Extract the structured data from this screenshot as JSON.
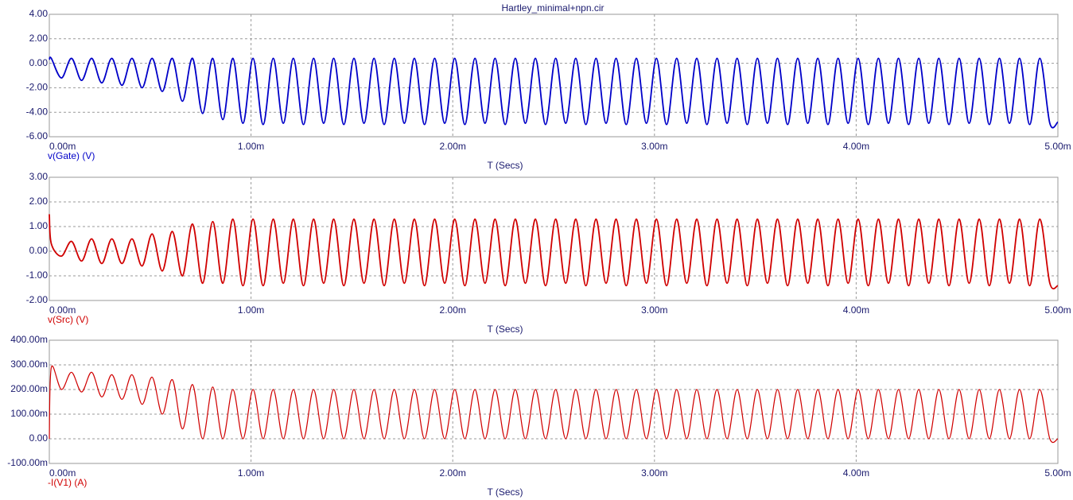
{
  "chart_data": [
    {
      "type": "line",
      "title": "Hartley_minimal+npn.cir",
      "xlabel": "T (Secs)",
      "xlim": [
        0,
        0.005
      ],
      "ylim": [
        -6,
        4
      ],
      "grid": true,
      "xticks": [
        {
          "value": 0,
          "label": "0.00m"
        },
        {
          "value": 0.001,
          "label": "1.00m"
        },
        {
          "value": 0.002,
          "label": "2.00m"
        },
        {
          "value": 0.003,
          "label": "3.00m"
        },
        {
          "value": 0.004,
          "label": "4.00m"
        },
        {
          "value": 0.005,
          "label": "5.00m"
        }
      ],
      "yticks": [
        {
          "value": 4,
          "label": "4.00"
        },
        {
          "value": 2,
          "label": "2.00"
        },
        {
          "value": 0,
          "label": "0.00"
        },
        {
          "value": -2,
          "label": "-2.00"
        },
        {
          "value": -4,
          "label": "-4.00"
        },
        {
          "value": -6,
          "label": "-6.00"
        }
      ],
      "x": [
        0,
        1e-05,
        6e-05,
        0.00011,
        0.00016,
        0.00021,
        0.00026,
        0.00031,
        0.00036,
        0.00041,
        0.00046,
        0.00051,
        0.00056,
        0.00061,
        0.00066,
        0.00071,
        0.00076,
        0.00081,
        0.00086,
        0.00091,
        0.00096,
        0.00101,
        0.00106,
        0.00111,
        0.00116,
        0.00121,
        0.00126,
        0.00131,
        0.00136,
        0.00141,
        0.00146,
        0.00151,
        0.00156,
        0.00161,
        0.00166,
        0.00171,
        0.00176,
        0.00181,
        0.00186,
        0.00191,
        0.00196,
        0.00201,
        0.00206,
        0.00211,
        0.00216,
        0.00221,
        0.00226,
        0.00231,
        0.00236,
        0.00241,
        0.00246,
        0.00251,
        0.00256,
        0.00261,
        0.00266,
        0.00271,
        0.00276,
        0.00281,
        0.00286,
        0.00291,
        0.00296,
        0.00301,
        0.00306,
        0.00311,
        0.00316,
        0.00321,
        0.00326,
        0.00331,
        0.00336,
        0.00341,
        0.00346,
        0.00351,
        0.00356,
        0.00361,
        0.00366,
        0.00371,
        0.00376,
        0.00381,
        0.00386,
        0.00391,
        0.00396,
        0.00401,
        0.00406,
        0.00411,
        0.00416,
        0.00421,
        0.00426,
        0.00431,
        0.00436,
        0.00441,
        0.00446,
        0.00451,
        0.00456,
        0.00461,
        0.00466,
        0.00471,
        0.00476,
        0.00481,
        0.00486,
        0.00491,
        0.00496,
        0.005
      ],
      "series": [
        {
          "name": "v(Gate) (V)",
          "color": "#0000c8",
          "values": [
            0.3,
            0.4,
            -1.2,
            0.4,
            -1.4,
            0.4,
            -1.6,
            0.4,
            -1.8,
            0.4,
            -2.0,
            0.4,
            -2.3,
            0.4,
            -3.1,
            0.4,
            -4.1,
            0.4,
            -4.6,
            0.4,
            -4.9,
            0.4,
            -5.0,
            0.4,
            -4.9,
            0.4,
            -5.0,
            0.4,
            -4.9,
            0.4,
            -5.0,
            0.4,
            -4.9,
            0.4,
            -5.0,
            0.4,
            -4.9,
            0.4,
            -5.0,
            0.4,
            -4.9,
            0.4,
            -5.0,
            0.4,
            -4.9,
            0.4,
            -5.0,
            0.4,
            -4.9,
            0.4,
            -5.0,
            0.4,
            -4.9,
            0.4,
            -5.0,
            0.4,
            -4.9,
            0.4,
            -5.0,
            0.4,
            -4.9,
            0.4,
            -5.0,
            0.4,
            -4.9,
            0.4,
            -5.0,
            0.4,
            -4.9,
            0.4,
            -5.0,
            0.4,
            -4.9,
            0.4,
            -5.0,
            0.4,
            -4.9,
            0.4,
            -5.0,
            0.4,
            -4.9,
            0.4,
            -5.0,
            0.4,
            -4.9,
            0.4,
            -5.0,
            0.4,
            -4.9,
            0.4,
            -5.0,
            0.4,
            -4.9,
            0.4,
            -5.0,
            0.4,
            -4.9,
            0.4,
            -5.0,
            0.4,
            -4.9,
            -4.8
          ]
        }
      ]
    },
    {
      "type": "line",
      "xlabel": "T (Secs)",
      "xlim": [
        0,
        0.005
      ],
      "ylim": [
        -2,
        3
      ],
      "grid": true,
      "xticks": [
        {
          "value": 0,
          "label": "0.00m"
        },
        {
          "value": 0.001,
          "label": "1.00m"
        },
        {
          "value": 0.002,
          "label": "2.00m"
        },
        {
          "value": 0.003,
          "label": "3.00m"
        },
        {
          "value": 0.004,
          "label": "4.00m"
        },
        {
          "value": 0.005,
          "label": "5.00m"
        }
      ],
      "yticks": [
        {
          "value": 3,
          "label": "3.00"
        },
        {
          "value": 2,
          "label": "2.00"
        },
        {
          "value": 1,
          "label": "1.00"
        },
        {
          "value": 0,
          "label": "0.00"
        },
        {
          "value": -1,
          "label": "-1.00"
        },
        {
          "value": -2,
          "label": "-2.00"
        }
      ],
      "x": [
        0,
        1e-05,
        6e-05,
        0.00011,
        0.00016,
        0.00021,
        0.00026,
        0.00031,
        0.00036,
        0.00041,
        0.00046,
        0.00051,
        0.00056,
        0.00061,
        0.00066,
        0.00071,
        0.00076,
        0.00081,
        0.00086,
        0.00091,
        0.00096,
        0.00101,
        0.00106,
        0.00111,
        0.00116,
        0.00121,
        0.00126,
        0.00131,
        0.00136,
        0.00141,
        0.00146,
        0.00151,
        0.00156,
        0.00161,
        0.00166,
        0.00171,
        0.00176,
        0.00181,
        0.00186,
        0.00191,
        0.00196,
        0.00201,
        0.00206,
        0.00211,
        0.00216,
        0.00221,
        0.00226,
        0.00231,
        0.00236,
        0.00241,
        0.00246,
        0.00251,
        0.00256,
        0.00261,
        0.00266,
        0.00271,
        0.00276,
        0.00281,
        0.00286,
        0.00291,
        0.00296,
        0.00301,
        0.00306,
        0.00311,
        0.00316,
        0.00321,
        0.00326,
        0.00331,
        0.00336,
        0.00341,
        0.00346,
        0.00351,
        0.00356,
        0.00361,
        0.00366,
        0.00371,
        0.00376,
        0.00381,
        0.00386,
        0.00391,
        0.00396,
        0.00401,
        0.00406,
        0.00411,
        0.00416,
        0.00421,
        0.00426,
        0.00431,
        0.00436,
        0.00441,
        0.00446,
        0.00451,
        0.00456,
        0.00461,
        0.00466,
        0.00471,
        0.00476,
        0.00481,
        0.00486,
        0.00491,
        0.00496,
        0.005
      ],
      "series": [
        {
          "name": "v(Src) (V)",
          "color": "#d00000",
          "values": [
            1.5,
            0.3,
            -0.2,
            0.4,
            -0.4,
            0.5,
            -0.5,
            0.5,
            -0.5,
            0.5,
            -0.6,
            0.7,
            -0.8,
            0.8,
            -1.0,
            1.1,
            -1.3,
            1.2,
            -1.3,
            1.3,
            -1.4,
            1.3,
            -1.4,
            1.3,
            -1.3,
            1.3,
            -1.4,
            1.3,
            -1.3,
            1.3,
            -1.4,
            1.3,
            -1.3,
            1.3,
            -1.4,
            1.3,
            -1.3,
            1.3,
            -1.4,
            1.3,
            -1.3,
            1.3,
            -1.4,
            1.3,
            -1.3,
            1.3,
            -1.4,
            1.3,
            -1.3,
            1.3,
            -1.4,
            1.3,
            -1.3,
            1.3,
            -1.4,
            1.3,
            -1.3,
            1.3,
            -1.4,
            1.3,
            -1.3,
            1.3,
            -1.4,
            1.3,
            -1.3,
            1.3,
            -1.4,
            1.3,
            -1.3,
            1.3,
            -1.4,
            1.3,
            -1.3,
            1.3,
            -1.4,
            1.3,
            -1.3,
            1.3,
            -1.4,
            1.3,
            -1.3,
            1.3,
            -1.4,
            1.3,
            -1.3,
            1.3,
            -1.4,
            1.3,
            -1.3,
            1.3,
            -1.4,
            1.3,
            -1.3,
            1.3,
            -1.4,
            1.3,
            -1.3,
            1.3,
            -1.4,
            1.3,
            -1.3,
            -1.4
          ]
        }
      ]
    },
    {
      "type": "line",
      "xlabel": "T (Secs)",
      "xlim": [
        0,
        0.005
      ],
      "ylim": [
        -0.1,
        0.4
      ],
      "grid": true,
      "xticks": [
        {
          "value": 0,
          "label": "0.00m"
        },
        {
          "value": 0.001,
          "label": "1.00m"
        },
        {
          "value": 0.002,
          "label": "2.00m"
        },
        {
          "value": 0.003,
          "label": "3.00m"
        },
        {
          "value": 0.004,
          "label": "4.00m"
        },
        {
          "value": 0.005,
          "label": "5.00m"
        }
      ],
      "yticks": [
        {
          "value": 0.4,
          "label": "400.00m"
        },
        {
          "value": 0.3,
          "label": "300.00m"
        },
        {
          "value": 0.2,
          "label": "200.00m"
        },
        {
          "value": 0.1,
          "label": "100.00m"
        },
        {
          "value": 0,
          "label": "0.00"
        },
        {
          "value": -0.1,
          "label": "-100.00m"
        }
      ],
      "x": [
        0,
        1e-05,
        6e-05,
        0.00011,
        0.00016,
        0.00021,
        0.00026,
        0.00031,
        0.00036,
        0.00041,
        0.00046,
        0.00051,
        0.00056,
        0.00061,
        0.00066,
        0.00071,
        0.00076,
        0.00081,
        0.00086,
        0.00091,
        0.00096,
        0.00101,
        0.00106,
        0.00111,
        0.00116,
        0.00121,
        0.00126,
        0.00131,
        0.00136,
        0.00141,
        0.00146,
        0.00151,
        0.00156,
        0.00161,
        0.00166,
        0.00171,
        0.00176,
        0.00181,
        0.00186,
        0.00191,
        0.00196,
        0.00201,
        0.00206,
        0.00211,
        0.00216,
        0.00221,
        0.00226,
        0.00231,
        0.00236,
        0.00241,
        0.00246,
        0.00251,
        0.00256,
        0.00261,
        0.00266,
        0.00271,
        0.00276,
        0.00281,
        0.00286,
        0.00291,
        0.00296,
        0.00301,
        0.00306,
        0.00311,
        0.00316,
        0.00321,
        0.00326,
        0.00331,
        0.00336,
        0.00341,
        0.00346,
        0.00351,
        0.00356,
        0.00361,
        0.00366,
        0.00371,
        0.00376,
        0.00381,
        0.00386,
        0.00391,
        0.00396,
        0.00401,
        0.00406,
        0.00411,
        0.00416,
        0.00421,
        0.00426,
        0.00431,
        0.00436,
        0.00441,
        0.00446,
        0.00451,
        0.00456,
        0.00461,
        0.00466,
        0.00471,
        0.00476,
        0.00481,
        0.00486,
        0.00491,
        0.00496,
        0.005
      ],
      "series": [
        {
          "name": "-I(V1) (A)",
          "color": "#d00000",
          "values": [
            0,
            0.29,
            0.2,
            0.27,
            0.19,
            0.27,
            0.17,
            0.26,
            0.16,
            0.26,
            0.14,
            0.25,
            0.1,
            0.24,
            0.04,
            0.22,
            0,
            0.21,
            0,
            0.2,
            0,
            0.2,
            0,
            0.2,
            0,
            0.2,
            0,
            0.2,
            0,
            0.2,
            0,
            0.2,
            0,
            0.2,
            0,
            0.2,
            0,
            0.2,
            0,
            0.2,
            0,
            0.2,
            0,
            0.2,
            0,
            0.2,
            0,
            0.2,
            0,
            0.2,
            0,
            0.2,
            0,
            0.2,
            0,
            0.2,
            0,
            0.2,
            0,
            0.2,
            0,
            0.2,
            0,
            0.2,
            0,
            0.2,
            0,
            0.2,
            0,
            0.2,
            0,
            0.2,
            0,
            0.2,
            0,
            0.2,
            0,
            0.2,
            0,
            0.2,
            0,
            0.2,
            0,
            0.2,
            0,
            0.2,
            0,
            0.2,
            0,
            0.2,
            0,
            0.2,
            0,
            0.2,
            0,
            0.2,
            0,
            0.2,
            0,
            0.2,
            0,
            0
          ]
        }
      ]
    }
  ]
}
